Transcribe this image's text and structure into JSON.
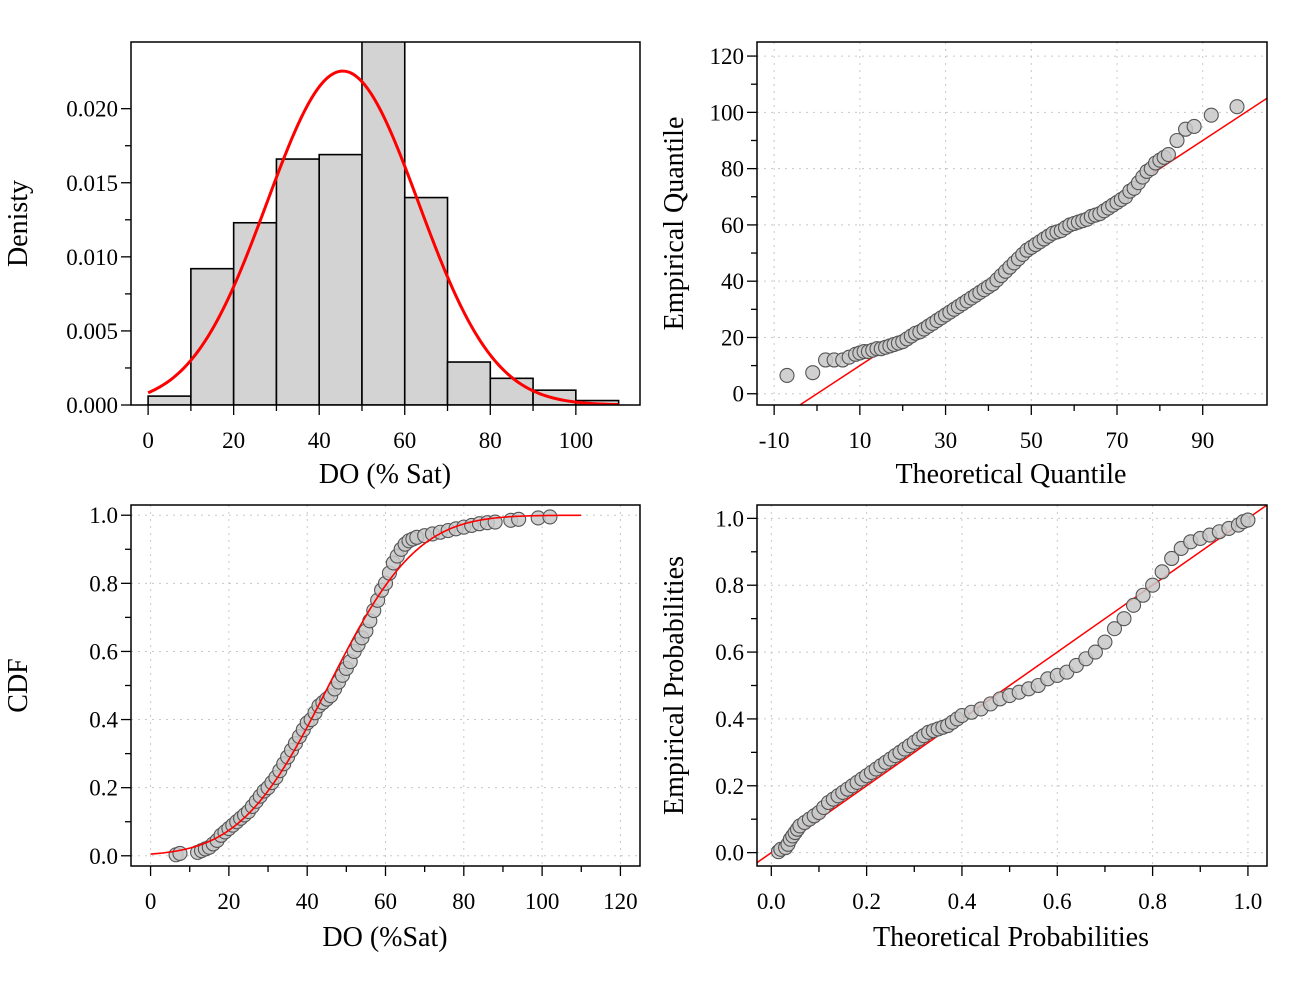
{
  "chart_data": [
    {
      "type": "bar",
      "xlabel": "DO (% Sat)",
      "ylabel": "Denisty",
      "xlim": [
        -4,
        115
      ],
      "ylim": [
        0,
        0.0245
      ],
      "xticks": [
        0,
        20,
        40,
        60,
        80,
        100
      ],
      "yticks": [
        "0.000",
        "0.005",
        "0.010",
        "0.015",
        "0.020"
      ],
      "grid": false,
      "bins": [
        {
          "x0": 0,
          "x1": 10,
          "value": 0.0006
        },
        {
          "x0": 10,
          "x1": 20,
          "value": 0.0092
        },
        {
          "x0": 20,
          "x1": 30,
          "value": 0.0123
        },
        {
          "x0": 30,
          "x1": 40,
          "value": 0.0166
        },
        {
          "x0": 40,
          "x1": 50,
          "value": 0.0169
        },
        {
          "x0": 50,
          "x1": 60,
          "value": 0.0246
        },
        {
          "x0": 60,
          "x1": 70,
          "value": 0.014
        },
        {
          "x0": 70,
          "x1": 80,
          "value": 0.0029
        },
        {
          "x0": 80,
          "x1": 90,
          "value": 0.0018
        },
        {
          "x0": 90,
          "x1": 100,
          "value": 0.001
        },
        {
          "x0": 100,
          "x1": 110,
          "value": 0.0003
        }
      ],
      "fit_curve": {
        "type": "normal",
        "mean": 45.5,
        "sd": 17.7,
        "x_range": [
          0,
          110
        ],
        "color": "#ff0000"
      }
    },
    {
      "type": "scatter",
      "xlabel": "Theoretical Quantile",
      "ylabel": "Empirical Quantile",
      "xlim": [
        -14,
        105
      ],
      "ylim": [
        -4,
        125
      ],
      "xticks": [
        -10,
        10,
        30,
        50,
        70,
        90
      ],
      "yticks": [
        0,
        20,
        40,
        60,
        80,
        100,
        120
      ],
      "grid": true,
      "points": [
        [
          -7,
          6.5
        ],
        [
          -1,
          7.5
        ],
        [
          2,
          12
        ],
        [
          4,
          12
        ],
        [
          6,
          12
        ],
        [
          7.5,
          13
        ],
        [
          9,
          14
        ],
        [
          10,
          14.5
        ],
        [
          11,
          15
        ],
        [
          12,
          15
        ],
        [
          13,
          15.5
        ],
        [
          14,
          16
        ],
        [
          15,
          16
        ],
        [
          16,
          16.5
        ],
        [
          17,
          17
        ],
        [
          18,
          17.5
        ],
        [
          19,
          18
        ],
        [
          20,
          18.5
        ],
        [
          21,
          19.5
        ],
        [
          22,
          20.5
        ],
        [
          23,
          21.5
        ],
        [
          24,
          22
        ],
        [
          25,
          23
        ],
        [
          26,
          24
        ],
        [
          27,
          25
        ],
        [
          28,
          26
        ],
        [
          29,
          27
        ],
        [
          30,
          28
        ],
        [
          31,
          29
        ],
        [
          32,
          30
        ],
        [
          33,
          31
        ],
        [
          34,
          32
        ],
        [
          35,
          33
        ],
        [
          36,
          34
        ],
        [
          37,
          35
        ],
        [
          38,
          36
        ],
        [
          39,
          37
        ],
        [
          40,
          38
        ],
        [
          41,
          39
        ],
        [
          42,
          40.5
        ],
        [
          43,
          42
        ],
        [
          44,
          43.5
        ],
        [
          45,
          45
        ],
        [
          46,
          46.5
        ],
        [
          47,
          48
        ],
        [
          48,
          49.5
        ],
        [
          49,
          51
        ],
        [
          50,
          52
        ],
        [
          51,
          53
        ],
        [
          52,
          54
        ],
        [
          53,
          55
        ],
        [
          54,
          56
        ],
        [
          55,
          57
        ],
        [
          56,
          57.5
        ],
        [
          57,
          58
        ],
        [
          58,
          59
        ],
        [
          59,
          60
        ],
        [
          60,
          60.5
        ],
        [
          61,
          61
        ],
        [
          62,
          61.5
        ],
        [
          63,
          62
        ],
        [
          64,
          63
        ],
        [
          65,
          63.5
        ],
        [
          66,
          64
        ],
        [
          67,
          65
        ],
        [
          68,
          66
        ],
        [
          69,
          67
        ],
        [
          70,
          68
        ],
        [
          71,
          69
        ],
        [
          72,
          70
        ],
        [
          73,
          72
        ],
        [
          74,
          73
        ],
        [
          75,
          75
        ],
        [
          76,
          77
        ],
        [
          77,
          79
        ],
        [
          78,
          80
        ],
        [
          79,
          82
        ],
        [
          80,
          83
        ],
        [
          81,
          84
        ],
        [
          82,
          85
        ],
        [
          84,
          90
        ],
        [
          86,
          94
        ],
        [
          88,
          95
        ],
        [
          92,
          99
        ],
        [
          98,
          102
        ]
      ],
      "reference_line": {
        "slope": 1.0,
        "intercept": 0,
        "color": "#ff0000"
      }
    },
    {
      "type": "scatter",
      "xlabel": "DO (%Sat)",
      "ylabel": "CDF",
      "xlim": [
        -5,
        125
      ],
      "ylim": [
        -0.03,
        1.03
      ],
      "xticks": [
        0,
        20,
        40,
        60,
        80,
        100,
        120
      ],
      "yticks": [
        "0.0",
        "0.2",
        "0.4",
        "0.6",
        "0.8",
        "1.0"
      ],
      "grid": true,
      "points": [
        [
          6.5,
          0.003
        ],
        [
          7.5,
          0.007
        ],
        [
          12,
          0.01
        ],
        [
          13,
          0.015
        ],
        [
          14,
          0.02
        ],
        [
          15,
          0.025
        ],
        [
          16,
          0.035
        ],
        [
          17,
          0.045
        ],
        [
          18,
          0.06
        ],
        [
          19,
          0.07
        ],
        [
          20,
          0.08
        ],
        [
          21,
          0.09
        ],
        [
          22,
          0.1
        ],
        [
          23,
          0.11
        ],
        [
          24,
          0.12
        ],
        [
          25,
          0.13
        ],
        [
          26,
          0.145
        ],
        [
          27,
          0.16
        ],
        [
          28,
          0.175
        ],
        [
          29,
          0.19
        ],
        [
          30,
          0.2
        ],
        [
          31,
          0.215
        ],
        [
          32,
          0.23
        ],
        [
          33,
          0.25
        ],
        [
          34,
          0.27
        ],
        [
          35,
          0.29
        ],
        [
          36,
          0.31
        ],
        [
          37,
          0.33
        ],
        [
          38,
          0.35
        ],
        [
          39,
          0.37
        ],
        [
          40,
          0.39
        ],
        [
          41,
          0.4
        ],
        [
          42,
          0.42
        ],
        [
          43,
          0.44
        ],
        [
          44,
          0.45
        ],
        [
          45,
          0.46
        ],
        [
          46,
          0.47
        ],
        [
          47,
          0.49
        ],
        [
          48,
          0.51
        ],
        [
          49,
          0.53
        ],
        [
          50,
          0.55
        ],
        [
          51,
          0.57
        ],
        [
          52,
          0.6
        ],
        [
          53,
          0.62
        ],
        [
          54,
          0.64
        ],
        [
          55,
          0.66
        ],
        [
          56,
          0.69
        ],
        [
          57,
          0.72
        ],
        [
          58,
          0.75
        ],
        [
          59,
          0.78
        ],
        [
          60,
          0.8
        ],
        [
          61,
          0.83
        ],
        [
          62,
          0.86
        ],
        [
          63,
          0.88
        ],
        [
          64,
          0.9
        ],
        [
          65,
          0.915
        ],
        [
          66,
          0.925
        ],
        [
          67,
          0.93
        ],
        [
          68,
          0.935
        ],
        [
          70,
          0.94
        ],
        [
          72,
          0.945
        ],
        [
          74,
          0.95
        ],
        [
          76,
          0.955
        ],
        [
          78,
          0.96
        ],
        [
          80,
          0.965
        ],
        [
          82,
          0.97
        ],
        [
          84,
          0.975
        ],
        [
          86,
          0.978
        ],
        [
          88,
          0.98
        ],
        [
          92,
          0.985
        ],
        [
          94,
          0.988
        ],
        [
          99,
          0.992
        ],
        [
          102,
          0.995
        ]
      ],
      "fit_curve": {
        "type": "normal_cdf",
        "mean": 45.5,
        "sd": 17.7,
        "x_range": [
          0,
          110
        ],
        "color": "#ff0000"
      }
    },
    {
      "type": "scatter",
      "xlabel": "Theoretical Probabilities",
      "ylabel": "Empirical Probabilities",
      "xlim": [
        -0.03,
        1.04
      ],
      "ylim": [
        -0.04,
        1.04
      ],
      "xticks": [
        "0.0",
        "0.2",
        "0.4",
        "0.6",
        "0.8",
        "1.0"
      ],
      "yticks": [
        "0.0",
        "0.2",
        "0.4",
        "0.6",
        "0.8",
        "1.0"
      ],
      "grid": true,
      "points": [
        [
          0.015,
          0.003
        ],
        [
          0.02,
          0.01
        ],
        [
          0.03,
          0.015
        ],
        [
          0.035,
          0.025
        ],
        [
          0.04,
          0.04
        ],
        [
          0.045,
          0.05
        ],
        [
          0.05,
          0.06
        ],
        [
          0.055,
          0.07
        ],
        [
          0.06,
          0.08
        ],
        [
          0.07,
          0.09
        ],
        [
          0.08,
          0.1
        ],
        [
          0.09,
          0.11
        ],
        [
          0.1,
          0.12
        ],
        [
          0.11,
          0.135
        ],
        [
          0.12,
          0.15
        ],
        [
          0.13,
          0.16
        ],
        [
          0.14,
          0.17
        ],
        [
          0.15,
          0.18
        ],
        [
          0.16,
          0.19
        ],
        [
          0.17,
          0.2
        ],
        [
          0.18,
          0.21
        ],
        [
          0.19,
          0.22
        ],
        [
          0.2,
          0.23
        ],
        [
          0.21,
          0.24
        ],
        [
          0.22,
          0.25
        ],
        [
          0.23,
          0.26
        ],
        [
          0.24,
          0.27
        ],
        [
          0.25,
          0.28
        ],
        [
          0.26,
          0.29
        ],
        [
          0.27,
          0.3
        ],
        [
          0.28,
          0.31
        ],
        [
          0.29,
          0.32
        ],
        [
          0.3,
          0.33
        ],
        [
          0.31,
          0.34
        ],
        [
          0.32,
          0.35
        ],
        [
          0.33,
          0.36
        ],
        [
          0.34,
          0.365
        ],
        [
          0.35,
          0.37
        ],
        [
          0.36,
          0.375
        ],
        [
          0.37,
          0.38
        ],
        [
          0.38,
          0.39
        ],
        [
          0.39,
          0.4
        ],
        [
          0.4,
          0.41
        ],
        [
          0.42,
          0.42
        ],
        [
          0.44,
          0.43
        ],
        [
          0.46,
          0.445
        ],
        [
          0.48,
          0.46
        ],
        [
          0.5,
          0.47
        ],
        [
          0.52,
          0.48
        ],
        [
          0.54,
          0.49
        ],
        [
          0.56,
          0.5
        ],
        [
          0.58,
          0.52
        ],
        [
          0.6,
          0.53
        ],
        [
          0.62,
          0.54
        ],
        [
          0.64,
          0.56
        ],
        [
          0.66,
          0.58
        ],
        [
          0.68,
          0.6
        ],
        [
          0.7,
          0.63
        ],
        [
          0.72,
          0.67
        ],
        [
          0.74,
          0.7
        ],
        [
          0.76,
          0.74
        ],
        [
          0.78,
          0.77
        ],
        [
          0.8,
          0.8
        ],
        [
          0.82,
          0.84
        ],
        [
          0.84,
          0.88
        ],
        [
          0.86,
          0.91
        ],
        [
          0.88,
          0.93
        ],
        [
          0.9,
          0.94
        ],
        [
          0.92,
          0.95
        ],
        [
          0.94,
          0.96
        ],
        [
          0.96,
          0.97
        ],
        [
          0.98,
          0.98
        ],
        [
          0.99,
          0.99
        ],
        [
          1.0,
          0.995
        ]
      ],
      "reference_line": {
        "slope": 1.0,
        "intercept": 0,
        "color": "#ff0000"
      }
    }
  ]
}
